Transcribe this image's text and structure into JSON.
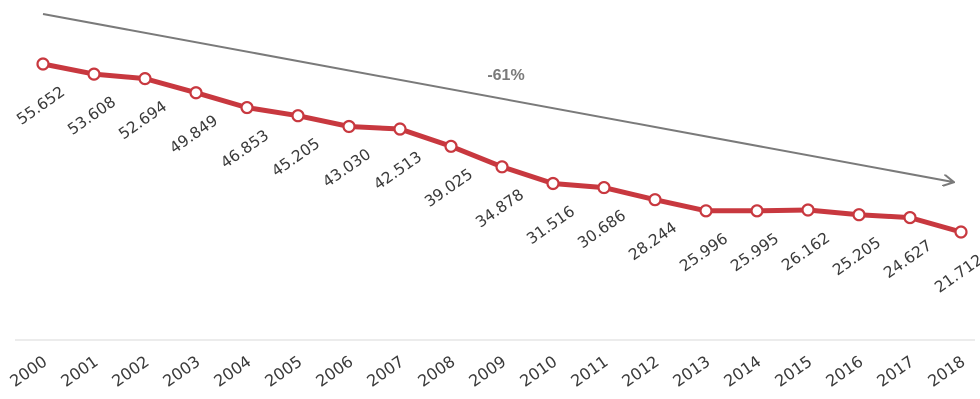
{
  "chart_data": {
    "type": "line",
    "title": "",
    "xlabel": "",
    "ylabel": "",
    "x": [
      "2000",
      "2001",
      "2002",
      "2003",
      "2004",
      "2005",
      "2006",
      "2007",
      "2008",
      "2009",
      "2010",
      "2011",
      "2012",
      "2013",
      "2014",
      "2015",
      "2016",
      "2017",
      "2018"
    ],
    "series": [
      {
        "values": [
          55652,
          53608,
          52694,
          49849,
          46853,
          45205,
          43030,
          42513,
          39025,
          34878,
          31516,
          30686,
          28244,
          25996,
          25995,
          26162,
          25205,
          24627,
          21712
        ],
        "labels": [
          "55.652",
          "53.608",
          "52.694",
          "49.849",
          "46.853",
          "45.205",
          "43.030",
          "42.513",
          "39.025",
          "34.878",
          "31.516",
          "30.686",
          "28.244",
          "25.996",
          "25.995",
          "26.162",
          "25.205",
          "24.627",
          "21.712"
        ]
      }
    ],
    "ylim": [
      0,
      58000
    ],
    "grid": false,
    "annotation": "-61%",
    "colors": {
      "line": "#c8383f",
      "marker_fill": "#ffffff",
      "trend_arrow": "#7a7a7a",
      "baseline": "#d9d9d9"
    }
  }
}
